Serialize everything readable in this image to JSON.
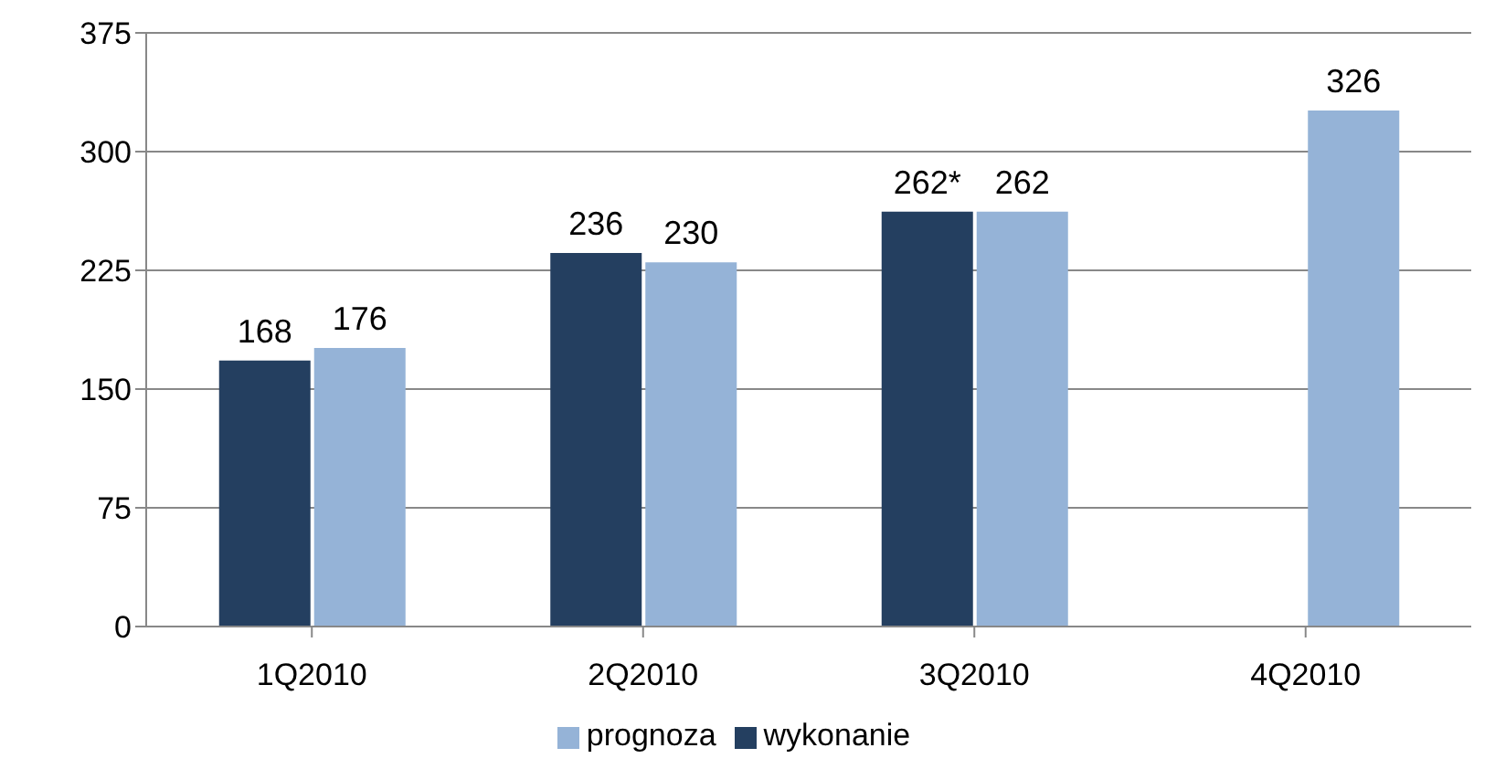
{
  "chart_data": {
    "type": "bar",
    "categories": [
      "1Q2010",
      "2Q2010",
      "3Q2010",
      "4Q2010"
    ],
    "series": [
      {
        "name": "wykonanie",
        "color": "#243f60",
        "values": [
          168,
          236,
          262,
          null
        ],
        "value_labels": [
          "168",
          "236",
          "262*",
          null
        ]
      },
      {
        "name": "prognoza",
        "color": "#95b3d7",
        "values": [
          176,
          230,
          262,
          326
        ],
        "value_labels": [
          "176",
          "230",
          "262",
          "326"
        ]
      }
    ],
    "ylim": [
      0,
      375
    ],
    "yticks": [
      0,
      75,
      150,
      225,
      300,
      375
    ],
    "grid": "y",
    "legend": "bottom"
  }
}
